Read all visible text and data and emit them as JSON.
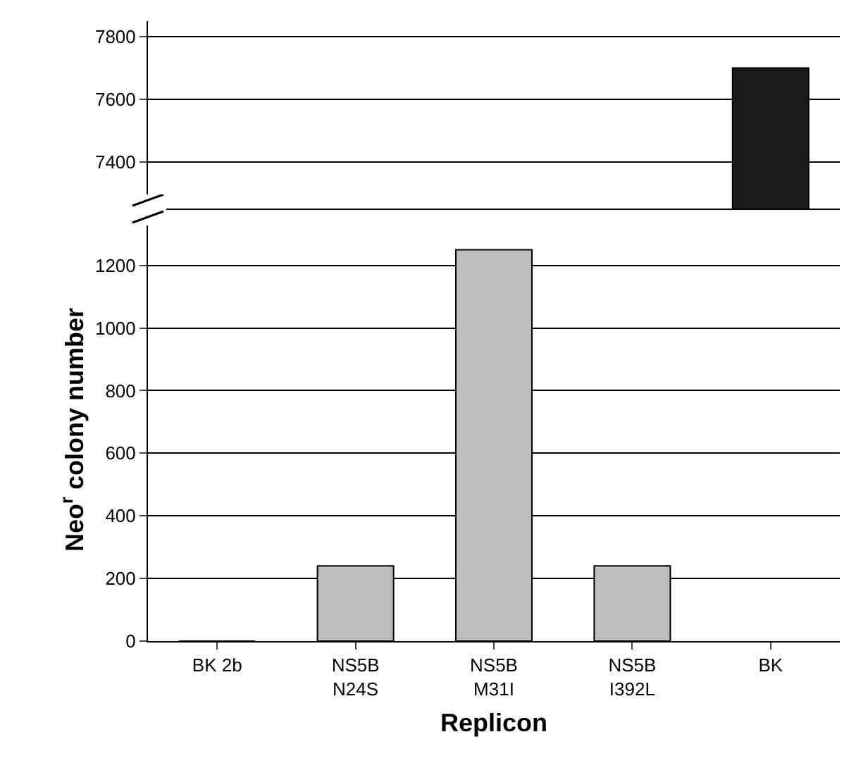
{
  "chart_data": [
    {
      "type": "bar",
      "categories": [
        null,
        null,
        null,
        null,
        null
      ],
      "colors": [
        "#bdbdbd",
        "#bdbdbd",
        "#bdbdbd",
        "#bdbdbd",
        "#1a1a1a"
      ],
      "values": [
        null,
        null,
        null,
        null,
        7700
      ],
      "ylim": [
        7250,
        7850
      ],
      "yticks": [
        7400,
        7600,
        7800
      ],
      "grid": "y",
      "tick_labels": "y"
    },
    {
      "type": "bar",
      "categories": [
        "BK 2b",
        "NS5B\nN24S",
        "NS5B\nM31I",
        "NS5B\nI392L",
        "BK"
      ],
      "colors": [
        "#bdbdbd",
        "#bdbdbd",
        "#bdbdbd",
        "#bdbdbd",
        "#1a1a1a"
      ],
      "values": [
        0,
        240,
        1250,
        240,
        null
      ],
      "ylim": [
        0,
        1350
      ],
      "yticks": [
        0,
        200,
        400,
        600,
        800,
        1000,
        1200
      ],
      "grid": "y",
      "xlabel": "Replicon",
      "ylabel": "Neo$^{r}$ colony number"
    }
  ]
}
